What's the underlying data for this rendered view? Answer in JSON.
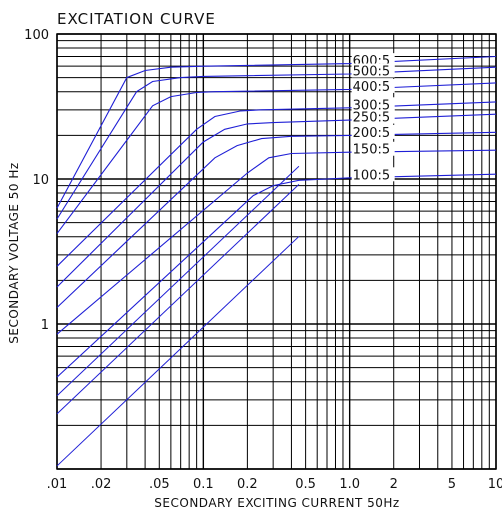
{
  "chart_data": {
    "type": "line",
    "title": "EXCITATION CURVE",
    "xlabel": "SECONDARY EXCITING CURRENT 50Hz",
    "ylabel": "SECONDARY VOLTAGE 50 Hz",
    "xscale": "log",
    "yscale": "log",
    "xlim": [
      0.01,
      10
    ],
    "ylim": [
      0.1,
      100
    ],
    "grid": true,
    "line_color": "#1f1fd6",
    "x_ticks": [
      {
        "value": 0.01,
        "label": ".01"
      },
      {
        "value": 0.02,
        "label": ".02"
      },
      {
        "value": 0.05,
        "label": ".05"
      },
      {
        "value": 0.1,
        "label": "0.1"
      },
      {
        "value": 0.2,
        "label": "0.2"
      },
      {
        "value": 0.5,
        "label": "0.5"
      },
      {
        "value": 1,
        "label": "1.0"
      },
      {
        "value": 2,
        "label": "2"
      },
      {
        "value": 5,
        "label": "5"
      },
      {
        "value": 10,
        "label": "10"
      }
    ],
    "y_ticks": [
      {
        "value": 1,
        "label": "1"
      },
      {
        "value": 10,
        "label": "10"
      },
      {
        "value": 100,
        "label": "100"
      }
    ],
    "series": [
      {
        "name": "600:5",
        "points": [
          [
            0.01,
            6.3
          ],
          [
            0.03,
            50
          ],
          [
            0.04,
            56
          ],
          [
            0.06,
            59
          ],
          [
            0.1,
            60
          ],
          [
            1,
            62.5
          ],
          [
            10,
            70
          ]
        ]
      },
      {
        "name": "500:5",
        "points": [
          [
            0.01,
            5.3
          ],
          [
            0.035,
            40
          ],
          [
            0.045,
            47
          ],
          [
            0.07,
            50
          ],
          [
            0.1,
            51
          ],
          [
            1,
            53
          ],
          [
            10,
            59
          ]
        ]
      },
      {
        "name": "400:5",
        "points": [
          [
            0.01,
            4.2
          ],
          [
            0.045,
            32
          ],
          [
            0.06,
            37
          ],
          [
            0.09,
            39.5
          ],
          [
            0.12,
            40
          ],
          [
            1,
            41.5
          ],
          [
            10,
            46
          ]
        ]
      },
      {
        "name": "300:5",
        "points": [
          [
            0.01,
            2.5
          ],
          [
            0.09,
            22
          ],
          [
            0.12,
            27
          ],
          [
            0.18,
            29.5
          ],
          [
            0.25,
            30
          ],
          [
            1,
            31
          ],
          [
            10,
            34
          ]
        ]
      },
      {
        "name": "250:5",
        "points": [
          [
            0.01,
            1.8
          ],
          [
            0.1,
            18
          ],
          [
            0.14,
            22
          ],
          [
            0.2,
            24
          ],
          [
            0.3,
            24.5
          ],
          [
            1,
            25.5
          ],
          [
            10,
            28
          ]
        ]
      },
      {
        "name": "200:5",
        "points": [
          [
            0.01,
            1.3
          ],
          [
            0.12,
            14
          ],
          [
            0.17,
            17
          ],
          [
            0.25,
            19
          ],
          [
            0.4,
            19.7
          ],
          [
            1,
            20
          ],
          [
            10,
            21
          ]
        ]
      },
      {
        "name": "150:5",
        "points": [
          [
            0.01,
            0.85
          ],
          [
            0.2,
            11
          ],
          [
            0.28,
            14
          ],
          [
            0.4,
            15
          ],
          [
            1,
            15.3
          ],
          [
            10,
            15.8
          ]
        ]
      },
      {
        "name": "100:5",
        "points": [
          [
            0.01,
            0.43
          ],
          [
            0.22,
            7.7
          ],
          [
            0.3,
            9
          ],
          [
            0.45,
            9.8
          ],
          [
            0.7,
            10
          ],
          [
            1,
            10.2
          ],
          [
            10,
            10.8
          ]
        ]
      }
    ],
    "y_extra_series_starts": [
      0.32,
      0.24,
      0.105
    ]
  }
}
